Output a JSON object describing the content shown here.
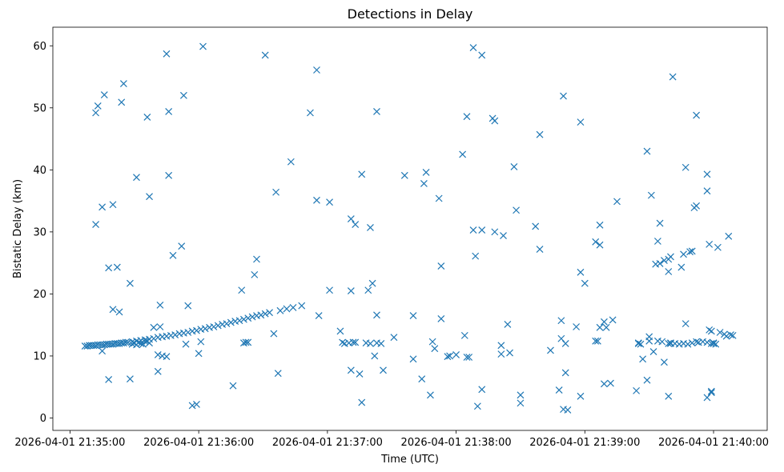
{
  "chart_data": {
    "type": "scatter",
    "title": "Detections in Delay",
    "xlabel": "Time (UTC)",
    "ylabel": "Bistatic Delay (km)",
    "xlim": [
      "2026-04-01 21:34:52",
      "2026-04-01 21:40:25"
    ],
    "ylim": [
      -2,
      63
    ],
    "x_ticks": [
      "2026-04-01 21:35:00",
      "2026-04-01 21:36:00",
      "2026-04-01 21:37:00",
      "2026-04-01 21:38:00",
      "2026-04-01 21:39:00",
      "2026-04-01 21:40:00"
    ],
    "x_tick_labels": [
      "2026-04-01 21:35:00",
      "2026-04-01 21:36:00",
      "2026-04-01 21:37:00",
      "2026-04-01 21:38:00",
      "2026-04-01 21:39:00",
      "2026-04-01 21:40:00"
    ],
    "y_ticks": [
      0,
      10,
      20,
      30,
      40,
      50,
      60
    ],
    "y_tick_labels": [
      "0",
      "10",
      "20",
      "30",
      "40",
      "50",
      "60"
    ],
    "marker": "x",
    "color": "#1f77b4",
    "grid": false,
    "series": [
      {
        "points": [
          [
            "21:35:07",
            11.6
          ],
          [
            "21:35:08",
            11.6
          ],
          [
            "21:35:09",
            11.7
          ],
          [
            "21:35:10",
            11.7
          ],
          [
            "21:35:11",
            11.7
          ],
          [
            "21:35:12",
            11.7
          ],
          [
            "21:35:13",
            11.8
          ],
          [
            "21:35:14",
            11.8
          ],
          [
            "21:35:15",
            11.8
          ],
          [
            "21:35:16",
            11.8
          ],
          [
            "21:35:17",
            11.9
          ],
          [
            "21:35:18",
            11.9
          ],
          [
            "21:35:19",
            11.9
          ],
          [
            "21:35:20",
            11.9
          ],
          [
            "21:35:21",
            12.0
          ],
          [
            "21:35:22",
            12.0
          ],
          [
            "21:35:23",
            12.0
          ],
          [
            "21:35:24",
            12.1
          ],
          [
            "21:35:25",
            12.1
          ],
          [
            "21:35:26",
            12.2
          ],
          [
            "21:35:27",
            12.2
          ],
          [
            "21:35:29",
            12.3
          ],
          [
            "21:35:31",
            12.4
          ],
          [
            "21:35:33",
            12.5
          ],
          [
            "21:35:35",
            12.6
          ],
          [
            "21:35:37",
            12.7
          ],
          [
            "21:35:39",
            12.8
          ],
          [
            "21:35:41",
            13.0
          ],
          [
            "21:35:43",
            13.1
          ],
          [
            "21:35:45",
            13.2
          ],
          [
            "21:35:47",
            13.3
          ],
          [
            "21:35:49",
            13.4
          ],
          [
            "21:35:51",
            13.6
          ],
          [
            "21:35:53",
            13.7
          ],
          [
            "21:35:55",
            13.8
          ],
          [
            "21:35:57",
            14.0
          ],
          [
            "21:35:59",
            14.1
          ],
          [
            "21:36:01",
            14.3
          ],
          [
            "21:36:03",
            14.4
          ],
          [
            "21:36:05",
            14.6
          ],
          [
            "21:36:07",
            14.7
          ],
          [
            "21:36:09",
            14.9
          ],
          [
            "21:36:11",
            15.1
          ],
          [
            "21:36:13",
            15.2
          ],
          [
            "21:36:15",
            15.4
          ],
          [
            "21:36:17",
            15.6
          ],
          [
            "21:36:19",
            15.7
          ],
          [
            "21:36:21",
            15.9
          ],
          [
            "21:36:23",
            16.1
          ],
          [
            "21:36:25",
            16.3
          ],
          [
            "21:36:27",
            16.5
          ],
          [
            "21:36:29",
            16.6
          ],
          [
            "21:36:31",
            16.8
          ],
          [
            "21:36:33",
            17.0
          ],
          [
            "21:36:38",
            17.3
          ],
          [
            "21:36:41",
            17.6
          ],
          [
            "21:36:44",
            17.8
          ],
          [
            "21:36:48",
            18.1
          ],
          [
            "21:35:29",
            11.9
          ],
          [
            "21:35:30",
            12.1
          ],
          [
            "21:35:31",
            11.8
          ],
          [
            "21:35:32",
            12.2
          ],
          [
            "21:35:33",
            12.0
          ],
          [
            "21:35:34",
            11.9
          ],
          [
            "21:35:35",
            12.3
          ],
          [
            "21:35:36",
            12.4
          ],
          [
            "21:35:37",
            12.1
          ],
          [
            "21:36:21",
            12.1
          ],
          [
            "21:36:22",
            12.2
          ],
          [
            "21:37:07",
            12.2
          ],
          [
            "21:37:08",
            12.0
          ],
          [
            "21:37:10",
            12.1
          ],
          [
            "21:37:12",
            12.2
          ],
          [
            "21:37:18",
            12.1
          ],
          [
            "21:37:20",
            12.0
          ],
          [
            "21:37:23",
            12.1
          ],
          [
            "21:37:25",
            12.0
          ],
          [
            "21:39:25",
            12.1
          ],
          [
            "21:39:26",
            11.9
          ],
          [
            "21:39:34",
            12.4
          ],
          [
            "21:39:36",
            12.3
          ],
          [
            "21:39:39",
            12.0
          ],
          [
            "21:39:40",
            12.1
          ],
          [
            "21:39:42",
            12.0
          ],
          [
            "21:39:44",
            11.9
          ],
          [
            "21:39:46",
            12.0
          ],
          [
            "21:39:48",
            11.9
          ],
          [
            "21:39:50",
            12.1
          ],
          [
            "21:39:52",
            12.3
          ],
          [
            "21:39:53",
            12.2
          ],
          [
            "21:39:55",
            12.3
          ],
          [
            "21:39:57",
            12.2
          ],
          [
            "21:39:59",
            12.0
          ],
          [
            "21:40:00",
            12.1
          ],
          [
            "21:40:01",
            11.9
          ],
          [
            "21:40:03",
            13.8
          ],
          [
            "21:40:05",
            13.5
          ],
          [
            "21:40:06",
            13.2
          ],
          [
            "21:40:08",
            13.4
          ],
          [
            "21:40:09",
            13.3
          ],
          [
            "21:39:58",
            14.2
          ],
          [
            "21:39:59",
            14.0
          ],
          [
            "21:35:12",
            49.2
          ],
          [
            "21:35:13",
            50.3
          ],
          [
            "21:35:12",
            31.2
          ],
          [
            "21:35:16",
            52.1
          ],
          [
            "21:35:15",
            34.0
          ],
          [
            "21:35:18",
            24.2
          ],
          [
            "21:35:20",
            34.4
          ],
          [
            "21:35:20",
            17.5
          ],
          [
            "21:35:22",
            24.3
          ],
          [
            "21:35:23",
            17.1
          ],
          [
            "21:35:24",
            50.9
          ],
          [
            "21:35:25",
            53.9
          ],
          [
            "21:35:15",
            10.8
          ],
          [
            "21:35:18",
            6.2
          ],
          [
            "21:35:28",
            6.3
          ],
          [
            "21:35:28",
            21.7
          ],
          [
            "21:35:31",
            38.8
          ],
          [
            "21:35:36",
            48.5
          ],
          [
            "21:35:37",
            35.7
          ],
          [
            "21:35:39",
            14.6
          ],
          [
            "21:35:42",
            18.2
          ],
          [
            "21:35:42",
            14.7
          ],
          [
            "21:35:41",
            10.2
          ],
          [
            "21:35:41",
            7.5
          ],
          [
            "21:35:43",
            10.0
          ],
          [
            "21:35:45",
            9.9
          ],
          [
            "21:35:45",
            58.7
          ],
          [
            "21:35:46",
            49.4
          ],
          [
            "21:35:46",
            39.1
          ],
          [
            "21:35:48",
            26.2
          ],
          [
            "21:35:52",
            27.7
          ],
          [
            "21:35:53",
            52.0
          ],
          [
            "21:35:54",
            11.9
          ],
          [
            "21:35:55",
            18.1
          ],
          [
            "21:35:57",
            2.0
          ],
          [
            "21:35:59",
            2.2
          ],
          [
            "21:36:00",
            10.4
          ],
          [
            "21:36:01",
            12.3
          ],
          [
            "21:36:02",
            59.9
          ],
          [
            "21:36:16",
            5.2
          ],
          [
            "21:36:20",
            20.6
          ],
          [
            "21:36:23",
            12.2
          ],
          [
            "21:36:26",
            23.1
          ],
          [
            "21:36:27",
            25.6
          ],
          [
            "21:36:31",
            58.5
          ],
          [
            "21:36:35",
            13.6
          ],
          [
            "21:36:36",
            36.4
          ],
          [
            "21:36:37",
            7.2
          ],
          [
            "21:36:43",
            41.3
          ],
          [
            "21:36:52",
            49.2
          ],
          [
            "21:36:55",
            56.1
          ],
          [
            "21:36:55",
            35.1
          ],
          [
            "21:36:56",
            16.5
          ],
          [
            "21:37:01",
            34.8
          ],
          [
            "21:37:01",
            20.6
          ],
          [
            "21:37:06",
            14.0
          ],
          [
            "21:37:11",
            32.1
          ],
          [
            "21:37:11",
            20.5
          ],
          [
            "21:37:11",
            7.7
          ],
          [
            "21:37:13",
            31.2
          ],
          [
            "21:37:13",
            12.2
          ],
          [
            "21:37:15",
            7.1
          ],
          [
            "21:37:16",
            39.3
          ],
          [
            "21:37:16",
            2.5
          ],
          [
            "21:37:20",
            30.7
          ],
          [
            "21:37:19",
            20.6
          ],
          [
            "21:37:21",
            21.7
          ],
          [
            "21:37:22",
            10.0
          ],
          [
            "21:37:23",
            16.6
          ],
          [
            "21:37:23",
            49.4
          ],
          [
            "21:37:26",
            7.7
          ],
          [
            "21:37:31",
            13.0
          ],
          [
            "21:37:36",
            39.1
          ],
          [
            "21:37:40",
            16.5
          ],
          [
            "21:37:40",
            9.5
          ],
          [
            "21:37:44",
            6.3
          ],
          [
            "21:37:45",
            37.8
          ],
          [
            "21:37:46",
            39.6
          ],
          [
            "21:37:48",
            3.7
          ],
          [
            "21:37:49",
            12.3
          ],
          [
            "21:37:50",
            11.2
          ],
          [
            "21:37:52",
            35.4
          ],
          [
            "21:37:53",
            24.5
          ],
          [
            "21:37:53",
            16.0
          ],
          [
            "21:37:56",
            9.9
          ],
          [
            "21:37:57",
            10.0
          ],
          [
            "21:38:00",
            10.2
          ],
          [
            "21:38:03",
            42.5
          ],
          [
            "21:38:04",
            13.3
          ],
          [
            "21:38:05",
            48.6
          ],
          [
            "21:38:05",
            9.8
          ],
          [
            "21:38:06",
            9.8
          ],
          [
            "21:38:08",
            59.7
          ],
          [
            "21:38:08",
            30.3
          ],
          [
            "21:38:09",
            26.1
          ],
          [
            "21:38:10",
            1.9
          ],
          [
            "21:38:12",
            58.5
          ],
          [
            "21:38:12",
            30.3
          ],
          [
            "21:38:12",
            4.6
          ],
          [
            "21:38:17",
            48.3
          ],
          [
            "21:38:18",
            47.9
          ],
          [
            "21:38:18",
            30.0
          ],
          [
            "21:38:21",
            11.7
          ],
          [
            "21:38:21",
            10.3
          ],
          [
            "21:38:22",
            29.4
          ],
          [
            "21:38:24",
            15.1
          ],
          [
            "21:38:25",
            10.5
          ],
          [
            "21:38:27",
            40.5
          ],
          [
            "21:38:28",
            33.5
          ],
          [
            "21:38:30",
            2.4
          ],
          [
            "21:38:30",
            3.7
          ],
          [
            "21:38:37",
            30.9
          ],
          [
            "21:38:39",
            45.7
          ],
          [
            "21:38:39",
            27.2
          ],
          [
            "21:38:44",
            10.9
          ],
          [
            "21:38:48",
            4.5
          ],
          [
            "21:38:49",
            12.8
          ],
          [
            "21:38:49",
            15.7
          ],
          [
            "21:38:50",
            1.4
          ],
          [
            "21:38:50",
            51.9
          ],
          [
            "21:38:51",
            7.3
          ],
          [
            "21:38:51",
            12.0
          ],
          [
            "21:38:52",
            1.3
          ],
          [
            "21:38:56",
            14.7
          ],
          [
            "21:38:58",
            23.5
          ],
          [
            "21:38:58",
            3.5
          ],
          [
            "21:38:58",
            47.7
          ],
          [
            "21:39:00",
            21.7
          ],
          [
            "21:39:05",
            28.4
          ],
          [
            "21:39:05",
            12.4
          ],
          [
            "21:39:06",
            12.4
          ],
          [
            "21:39:07",
            27.9
          ],
          [
            "21:39:07",
            31.1
          ],
          [
            "21:39:07",
            14.6
          ],
          [
            "21:39:09",
            15.5
          ],
          [
            "21:39:09",
            5.5
          ],
          [
            "21:39:10",
            14.6
          ],
          [
            "21:39:12",
            5.6
          ],
          [
            "21:39:13",
            15.8
          ],
          [
            "21:39:15",
            34.9
          ],
          [
            "21:39:24",
            4.4
          ],
          [
            "21:39:25",
            12.0
          ],
          [
            "21:39:27",
            9.5
          ],
          [
            "21:39:29",
            6.1
          ],
          [
            "21:39:29",
            43.0
          ],
          [
            "21:39:30",
            12.4
          ],
          [
            "21:39:30",
            13.1
          ],
          [
            "21:39:31",
            35.9
          ],
          [
            "21:39:32",
            10.7
          ],
          [
            "21:39:33",
            24.8
          ],
          [
            "21:39:34",
            28.5
          ],
          [
            "21:39:35",
            31.4
          ],
          [
            "21:39:35",
            24.9
          ],
          [
            "21:39:37",
            25.4
          ],
          [
            "21:39:37",
            9.0
          ],
          [
            "21:39:39",
            3.5
          ],
          [
            "21:39:39",
            23.6
          ],
          [
            "21:39:39",
            25.6
          ],
          [
            "21:39:40",
            26.0
          ],
          [
            "21:39:40",
            12.0
          ],
          [
            "21:39:41",
            55.0
          ],
          [
            "21:39:45",
            24.3
          ],
          [
            "21:39:46",
            26.4
          ],
          [
            "21:39:47",
            15.2
          ],
          [
            "21:39:47",
            40.4
          ],
          [
            "21:39:49",
            26.8
          ],
          [
            "21:39:50",
            26.9
          ],
          [
            "21:39:51",
            33.9
          ],
          [
            "21:39:52",
            48.8
          ],
          [
            "21:39:52",
            34.2
          ],
          [
            "21:39:57",
            39.3
          ],
          [
            "21:39:57",
            36.6
          ],
          [
            "21:39:57",
            3.3
          ],
          [
            "21:39:58",
            28.0
          ],
          [
            "21:39:59",
            4.1
          ],
          [
            "21:39:59",
            4.3
          ],
          [
            "21:40:00",
            12.0
          ],
          [
            "21:40:02",
            27.5
          ],
          [
            "21:40:07",
            29.3
          ]
        ]
      }
    ]
  }
}
